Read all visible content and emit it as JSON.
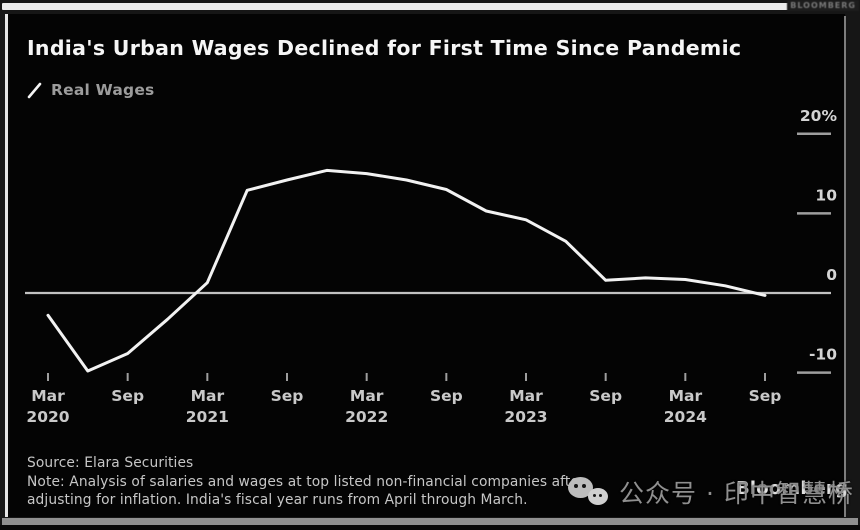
{
  "frame": {
    "corner_text": "BLOOMBERG"
  },
  "header": {
    "title": "India's Urban Wages Declined for First Time Since Pandemic"
  },
  "legend": {
    "label": "Real Wages"
  },
  "chart_data": {
    "type": "line",
    "title": "India's Urban Wages Declined for First Time Since Pandemic",
    "xlabel": "",
    "ylabel": "%",
    "ylim": [
      -13,
      22
    ],
    "grid": false,
    "zero_line": true,
    "legend_position": "top-left",
    "background": "#040404",
    "y_ticks": [
      {
        "label": "20%",
        "value": 20
      },
      {
        "label": "10",
        "value": 10
      },
      {
        "label": "0",
        "value": 0
      },
      {
        "label": "-10",
        "value": -10
      }
    ],
    "x_ticks": [
      {
        "index": 0,
        "line1": "Mar",
        "line2": "2020"
      },
      {
        "index": 2,
        "line1": "Sep",
        "line2": ""
      },
      {
        "index": 4,
        "line1": "Mar",
        "line2": "2021"
      },
      {
        "index": 6,
        "line1": "Sep",
        "line2": ""
      },
      {
        "index": 8,
        "line1": "Mar",
        "line2": "2022"
      },
      {
        "index": 10,
        "line1": "Sep",
        "line2": ""
      },
      {
        "index": 12,
        "line1": "Mar",
        "line2": "2023"
      },
      {
        "index": 14,
        "line1": "Sep",
        "line2": ""
      },
      {
        "index": 16,
        "line1": "Mar",
        "line2": "2024"
      },
      {
        "index": 18,
        "line1": "Sep",
        "line2": ""
      }
    ],
    "series": [
      {
        "name": "Real Wages",
        "color": "#f2f2f2",
        "x": [
          "Mar 2020",
          "Jun 2020",
          "Sep 2020",
          "Dec 2020",
          "Mar 2021",
          "Jun 2021",
          "Sep 2021",
          "Dec 2021",
          "Mar 2022",
          "Jun 2022",
          "Sep 2022",
          "Dec 2022",
          "Mar 2023",
          "Jun 2023",
          "Sep 2023",
          "Dec 2023",
          "Mar 2024",
          "Jun 2024",
          "Sep 2024"
        ],
        "values": [
          -2.8,
          -9.8,
          -7.6,
          -3.3,
          1.3,
          12.9,
          14.2,
          15.4,
          15.0,
          14.2,
          13.0,
          10.3,
          9.2,
          6.5,
          1.6,
          1.9,
          1.7,
          0.9,
          -0.3
        ]
      }
    ],
    "axis_colors": {
      "tick": "#9e9e9e",
      "label": "#d4d4d4",
      "zero_line": "#c2c2c2"
    }
  },
  "footer": {
    "source": "Source: Elara Securities",
    "note_line1": "Note: Analysis of salaries and wages at top listed non-financial companies after",
    "note_line2": "adjusting for inflation. India's fiscal year runs from April through March.",
    "brand": "Bloomberg"
  },
  "watermark": {
    "icon": "wechat-icon",
    "text": "公众号 · 印中智慧桥"
  }
}
